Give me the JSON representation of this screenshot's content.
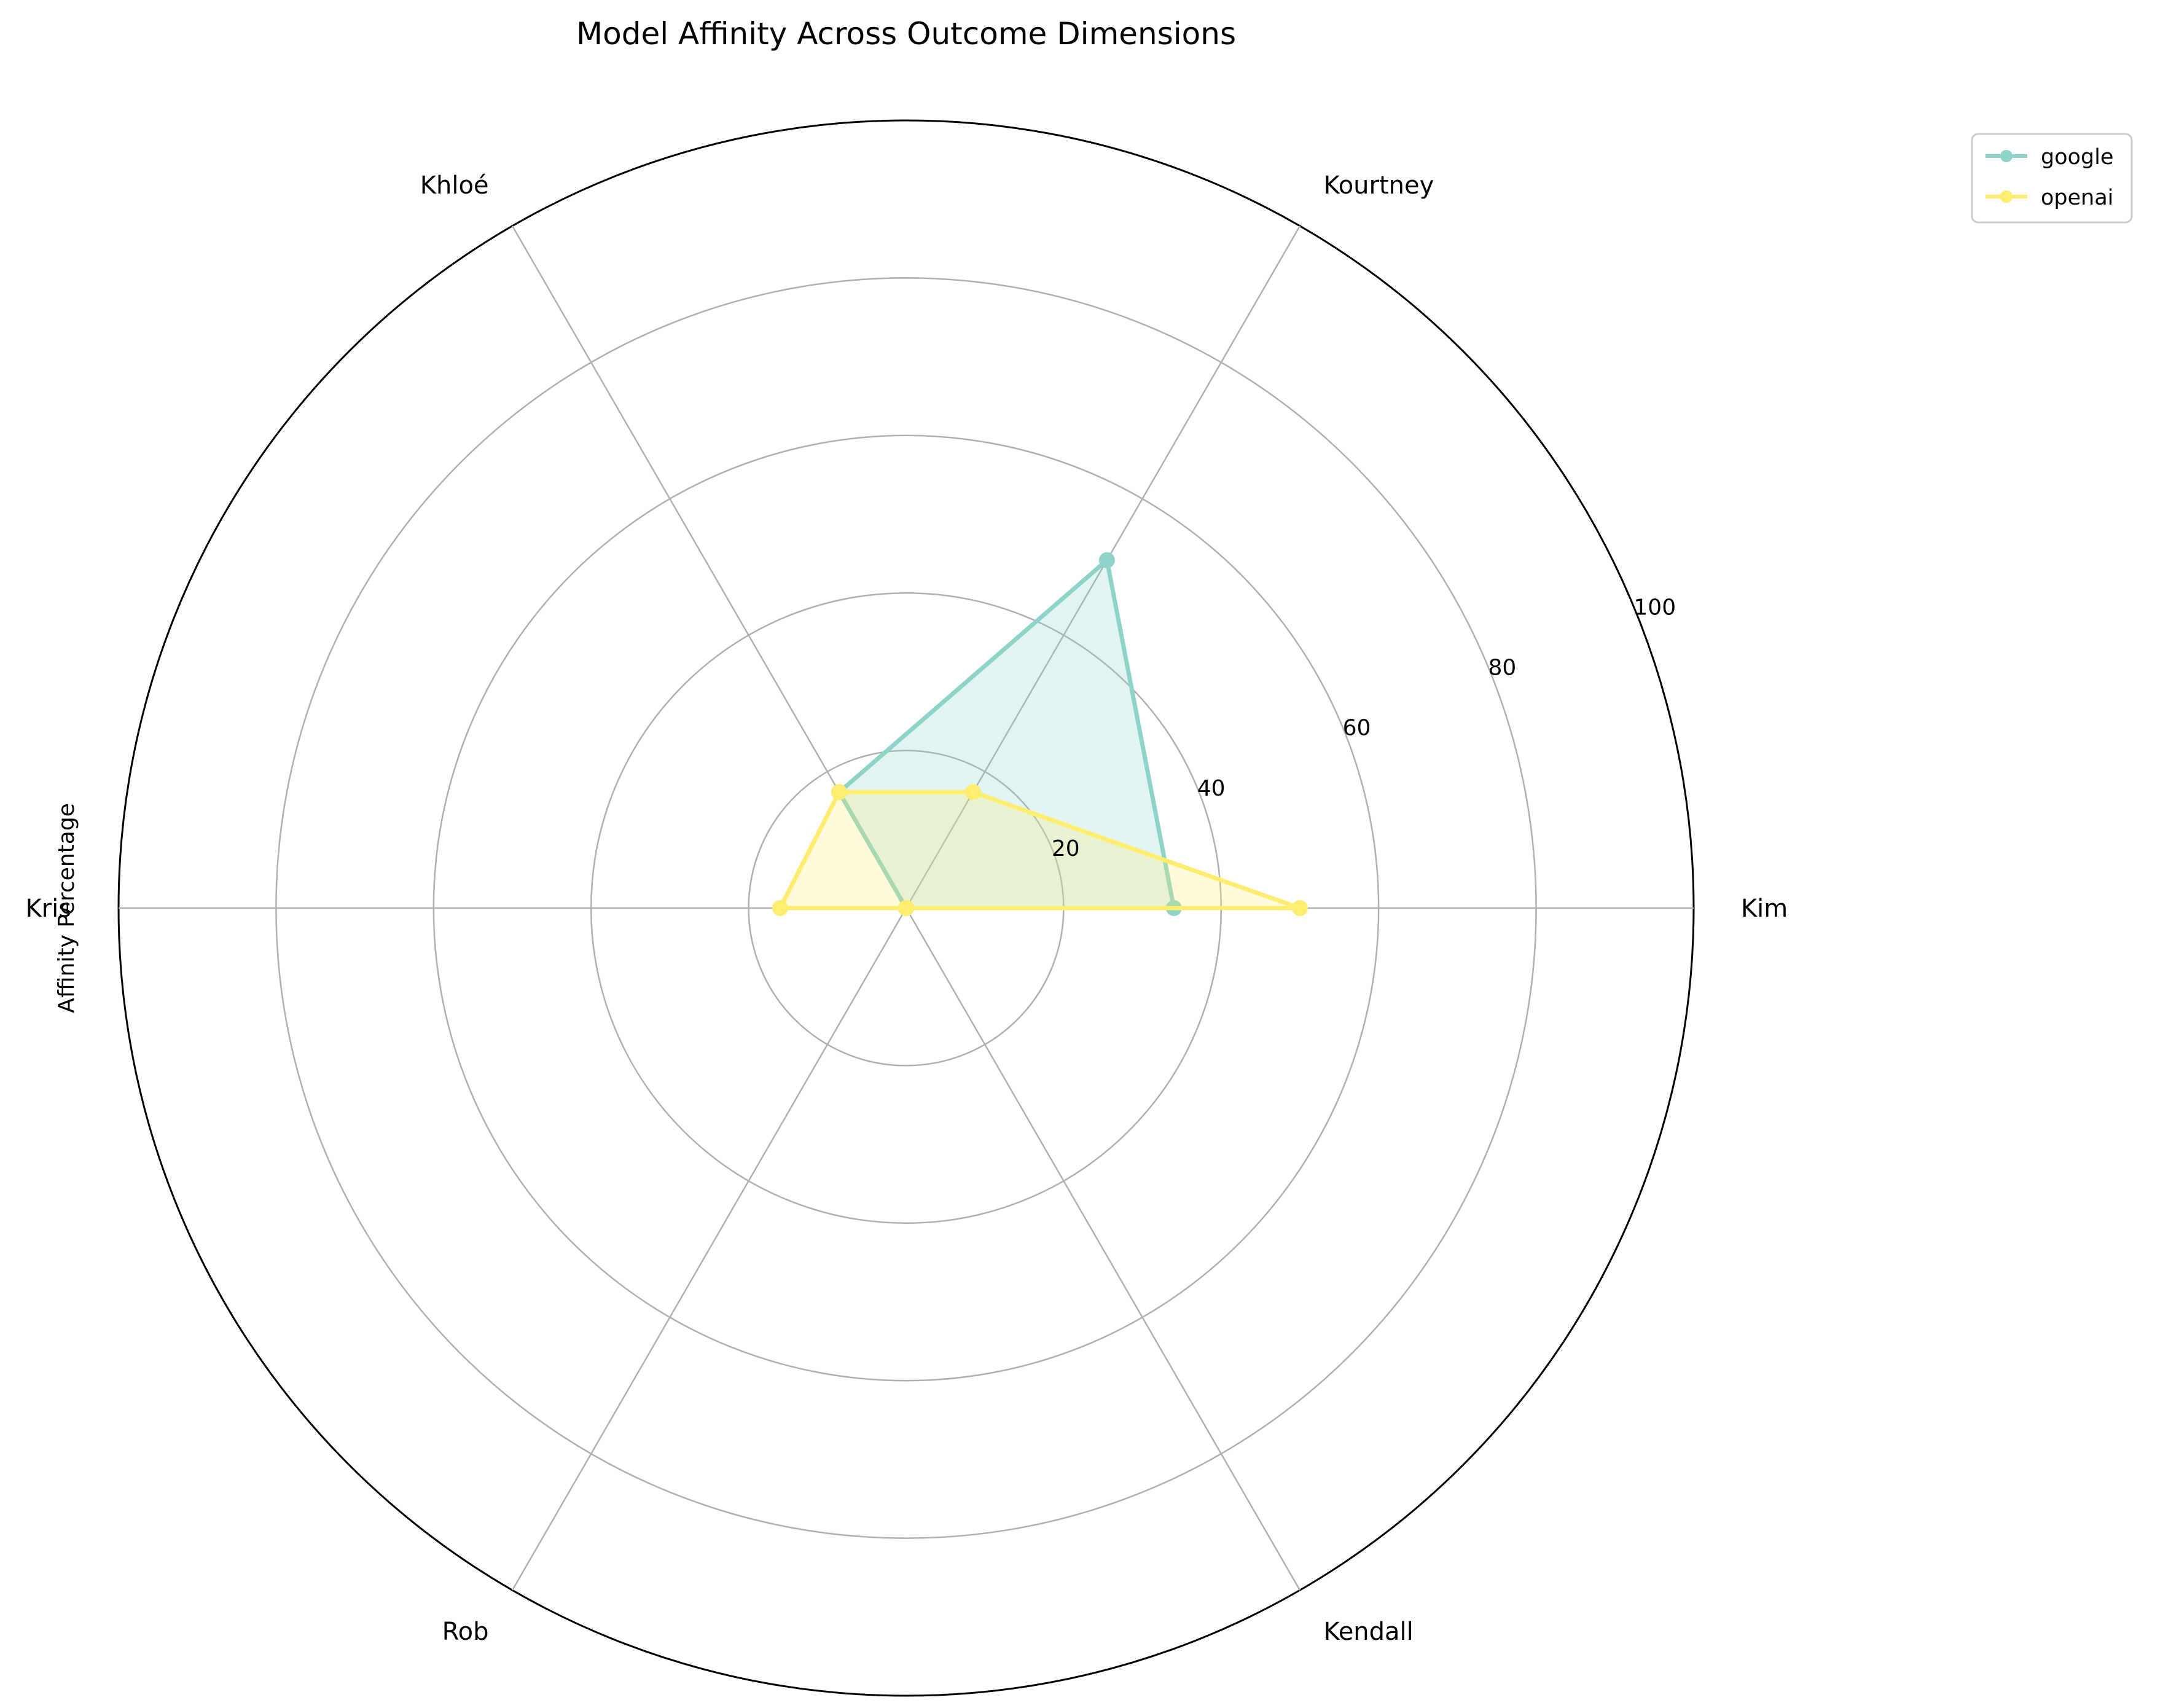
{
  "chart_data": {
    "type": "radar",
    "title": "Model Affinity Across Outcome Dimensions",
    "ylabel": "Affinity Percentage",
    "categories": [
      "Kim",
      "Kourtney",
      "Khloé",
      "Kris",
      "Rob",
      "Kendall"
    ],
    "rlim": [
      0,
      100
    ],
    "r_ticks": [
      20,
      40,
      60,
      80,
      100
    ],
    "r_tick_labels": [
      "20",
      "40",
      "60",
      "80",
      "100"
    ],
    "grid": true,
    "legend_position": "upper-right",
    "series": [
      {
        "name": "google",
        "color": "#8dd3c7",
        "values": [
          34,
          51,
          17,
          0,
          0,
          0
        ]
      },
      {
        "name": "openai",
        "color": "#ffed6f",
        "values": [
          50,
          17,
          17,
          16,
          0,
          0
        ]
      }
    ]
  }
}
